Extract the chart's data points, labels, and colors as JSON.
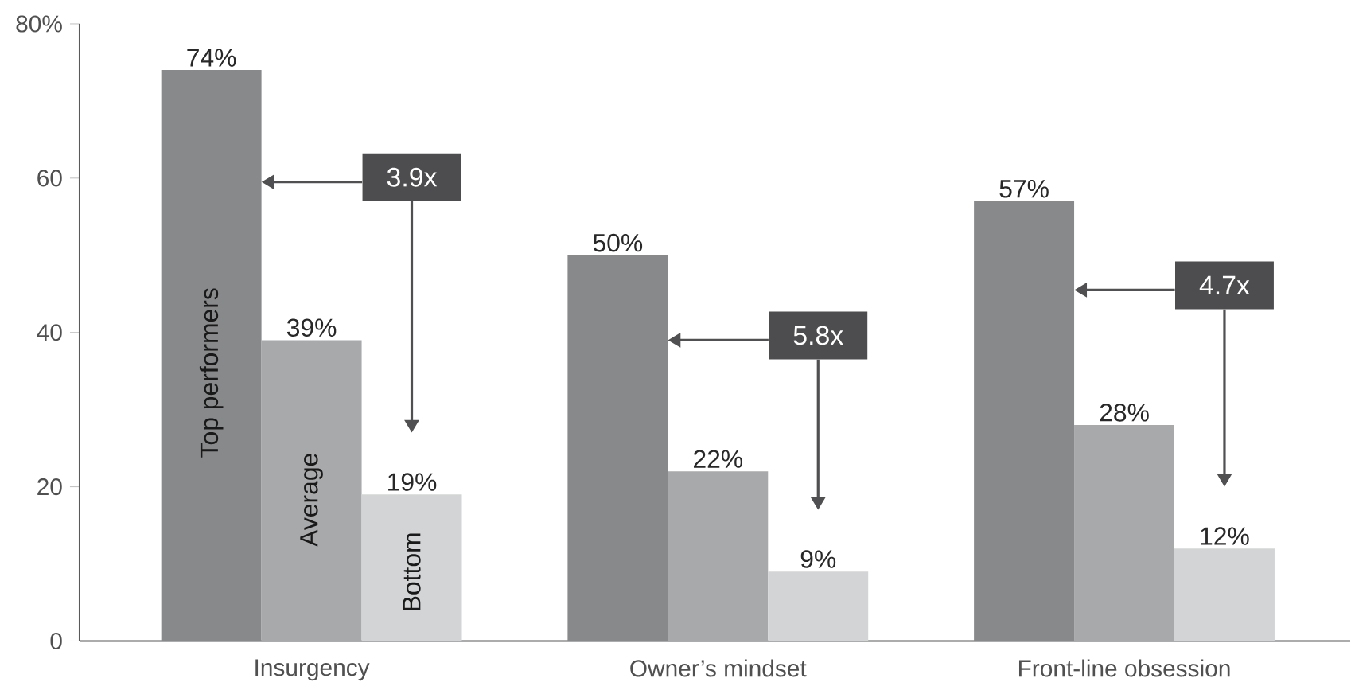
{
  "chart_data": {
    "type": "bar",
    "categories": [
      "Insurgency",
      "Owner’s mindset",
      "Front-line obsession"
    ],
    "series": [
      {
        "name": "Top performers",
        "color": "#88898b",
        "values": [
          74,
          50,
          57
        ],
        "value_labels": [
          "74%",
          "50%",
          "57%"
        ]
      },
      {
        "name": "Average",
        "color": "#a8a9ab",
        "values": [
          39,
          22,
          28
        ],
        "value_labels": [
          "39%",
          "22%",
          "28%"
        ]
      },
      {
        "name": "Bottom",
        "color": "#d3d4d5",
        "values": [
          19,
          9,
          12
        ],
        "value_labels": [
          "19%",
          "9%",
          "12%"
        ]
      }
    ],
    "ylim": [
      0,
      80
    ],
    "yticks": [
      0,
      20,
      40,
      60,
      {
        "value": 80,
        "label": "80%"
      }
    ],
    "annotations": [
      "3.9x",
      "5.8x",
      "4.7x"
    ]
  }
}
